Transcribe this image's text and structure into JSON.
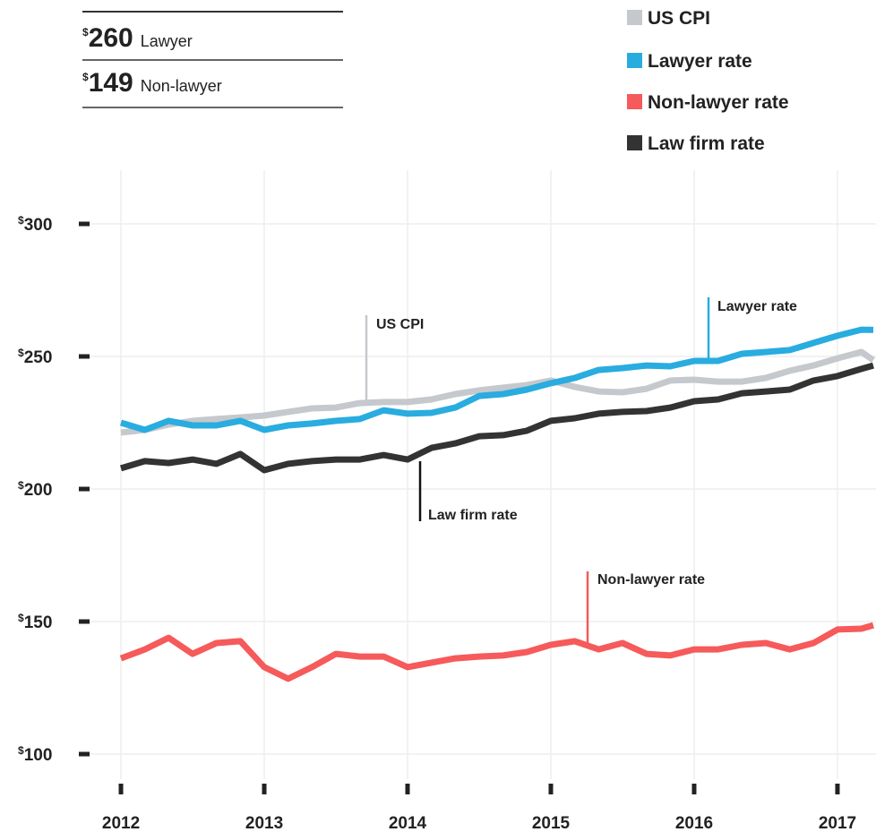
{
  "chart_data": {
    "type": "line",
    "summary": [
      {
        "value_label": "$260",
        "label": "Lawyer"
      },
      {
        "value_label": "$149",
        "label": "Non-lawyer"
      }
    ],
    "annotations": [
      "US CPI",
      "Lawyer rate",
      "Law firm rate",
      "Non-lawyer rate"
    ],
    "legend": "top-right",
    "grid": true,
    "xlim": [
      2011.156,
      2017.269
    ],
    "xticks": [
      2012,
      2013,
      2014,
      2015,
      2016,
      2017
    ],
    "ylim": [
      100,
      300
    ],
    "yticks": [
      {
        "value": 300,
        "label": "$300"
      },
      {
        "value": 250,
        "label": "$250"
      },
      {
        "value": 200,
        "label": "$200"
      },
      {
        "value": 150,
        "label": "$150"
      },
      {
        "value": 100,
        "label": "$100"
      }
    ],
    "x": [
      2012,
      2012.167,
      2012.333,
      2012.5,
      2012.667,
      2012.833,
      2013,
      2013.167,
      2013.333,
      2013.5,
      2013.667,
      2013.833,
      2014,
      2014.167,
      2014.333,
      2014.5,
      2014.667,
      2014.833,
      2015,
      2015.167,
      2015.333,
      2015.5,
      2015.667,
      2015.833,
      2016,
      2016.167,
      2016.333,
      2016.5,
      2016.667,
      2016.833,
      2017,
      2017.167,
      2017.25
    ],
    "series": [
      {
        "name": "US CPI",
        "color": "#c5c8cc",
        "values": [
          221.3,
          222.3,
          224.3,
          225.7,
          226.4,
          227.0,
          227.7,
          229.1,
          230.4,
          230.7,
          232.4,
          232.8,
          232.8,
          233.8,
          235.8,
          237.2,
          238.2,
          239.2,
          240.9,
          238.5,
          236.8,
          236.5,
          237.8,
          240.9,
          241.2,
          240.5,
          240.5,
          241.9,
          244.6,
          246.6,
          249.3,
          251.7,
          248.6
        ]
      },
      {
        "name": "Lawyer rate",
        "color": "#29acdf",
        "values": [
          225.0,
          222.3,
          225.7,
          224.0,
          224.0,
          225.7,
          222.3,
          224.0,
          224.7,
          225.7,
          226.4,
          229.7,
          228.4,
          228.7,
          230.7,
          235.1,
          235.8,
          237.5,
          239.9,
          241.9,
          244.9,
          245.6,
          246.6,
          246.3,
          248.3,
          248.3,
          251.0,
          251.7,
          252.4,
          255.1,
          257.8,
          260.1,
          260
        ]
      },
      {
        "name": "Non-lawyer rate",
        "color": "#f65a5a",
        "values": [
          136.1,
          139.5,
          143.9,
          137.8,
          141.9,
          142.6,
          132.8,
          128.4,
          132.8,
          137.8,
          136.8,
          136.8,
          132.8,
          134.5,
          136.1,
          136.8,
          137.2,
          138.5,
          141.2,
          142.6,
          139.5,
          141.9,
          137.8,
          137.2,
          139.5,
          139.5,
          141.2,
          141.9,
          139.5,
          141.9,
          147.0,
          147.3,
          148.6
        ]
      },
      {
        "name": "Law firm rate",
        "color": "#333333",
        "values": [
          207.8,
          210.5,
          209.8,
          211.1,
          209.5,
          213.2,
          207.1,
          209.5,
          210.5,
          211.1,
          211.1,
          212.8,
          211.1,
          215.5,
          217.2,
          219.9,
          220.3,
          222.0,
          225.7,
          226.7,
          228.4,
          229.1,
          229.4,
          230.7,
          233.1,
          233.8,
          236.1,
          236.8,
          237.5,
          240.9,
          242.6,
          245.3,
          246.6
        ]
      }
    ]
  }
}
